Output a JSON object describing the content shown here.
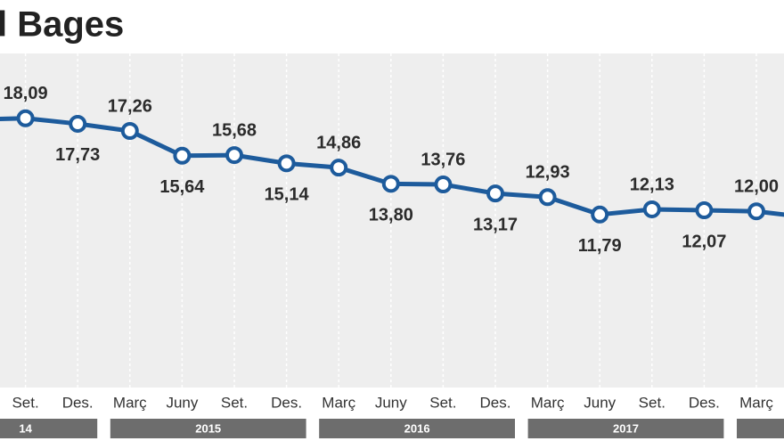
{
  "chart_data": {
    "type": "line",
    "title": "l Bages",
    "categories": [
      null,
      "Set.",
      "Des.",
      "Març",
      "Juny",
      "Set.",
      "Des.",
      "Març",
      "Juny",
      "Set.",
      "Des.",
      "Març",
      "Juny",
      "Set.",
      "Des.",
      "Març",
      null
    ],
    "values": [
      18.0,
      18.09,
      17.73,
      17.26,
      15.64,
      15.68,
      15.14,
      14.86,
      13.8,
      13.76,
      13.17,
      12.93,
      11.79,
      12.13,
      12.07,
      12.0,
      11.6
    ],
    "value_labels": [
      null,
      "18,09",
      "17,73",
      "17,26",
      "15,64",
      "15,68",
      "15,14",
      "14,86",
      "13,80",
      "13,76",
      "13,17",
      "12,93",
      "11,79",
      "12,13",
      "12,07",
      "12,00",
      null
    ],
    "color": "#1d5b9c",
    "ylim": [
      0,
      22.8
    ],
    "year_groups": [
      {
        "label": "14",
        "from": 0,
        "to": 2
      },
      {
        "label": "2015",
        "from": 3,
        "to": 6
      },
      {
        "label": "2016",
        "from": 7,
        "to": 10
      },
      {
        "label": "2017",
        "from": 11,
        "to": 14
      },
      {
        "label": null,
        "from": 15,
        "to": 16
      }
    ]
  }
}
